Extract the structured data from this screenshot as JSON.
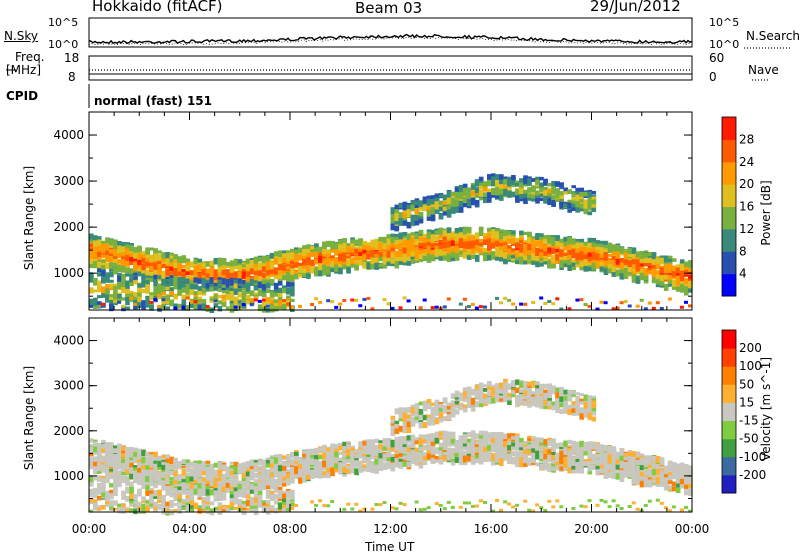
{
  "header": {
    "station": "Hokkaido (fitACF)",
    "beam": "Beam 03",
    "date": "29/Jun/2012"
  },
  "noise_panel": {
    "left_label": "N.Sky",
    "left_ticks": [
      "10^5",
      "10^0"
    ],
    "right_ticks": [
      "10^5",
      "10^0"
    ],
    "right_label": "N.Search"
  },
  "freq_panel": {
    "left_label_1": "Freq.",
    "left_label_2": "[MHz]",
    "left_ticks": [
      "18",
      "8"
    ],
    "right_ticks": [
      "60",
      "0"
    ],
    "right_label": "Nave"
  },
  "cpid": {
    "label": "CPID",
    "value": "normal (fast) 151"
  },
  "chart_data": [
    {
      "type": "heatmap",
      "name": "power",
      "ylabel": "Slant Range [km]",
      "yticks": [
        "4000",
        "3000",
        "2000",
        "1000"
      ],
      "ylim": [
        200,
        4500
      ],
      "colorbar_label": "Power [dB]",
      "colorbar_ticks": [
        "28",
        "24",
        "20",
        "16",
        "12",
        "8",
        "4"
      ],
      "colorbar_colors": [
        "#0000ff",
        "#2850b0",
        "#3a8a7a",
        "#7ab040",
        "#e0c020",
        "#ff9a00",
        "#ff5a00",
        "#ff1a00"
      ],
      "bands": [
        {
          "label": "main band",
          "x": [
            0,
            2,
            4,
            6,
            8,
            10,
            12,
            14,
            16,
            18,
            20,
            22,
            24
          ],
          "y": [
            1500,
            1250,
            1000,
            950,
            1200,
            1400,
            1500,
            1650,
            1650,
            1500,
            1400,
            1150,
            900
          ]
        },
        {
          "label": "lower band",
          "x": [
            0,
            2,
            4,
            6,
            8
          ],
          "y": [
            700,
            600,
            500,
            450,
            400
          ]
        },
        {
          "label": "upper band",
          "x": [
            12,
            14,
            16,
            18,
            20
          ],
          "y": [
            2200,
            2500,
            2900,
            2800,
            2500
          ]
        }
      ]
    },
    {
      "type": "heatmap",
      "name": "velocity",
      "ylabel": "Slant Range [km]",
      "yticks": [
        "4000",
        "3000",
        "2000",
        "1000"
      ],
      "ylim": [
        200,
        4500
      ],
      "colorbar_label": "Velocity [m s^-1]",
      "colorbar_ticks": [
        "200",
        "100",
        "50",
        "15",
        "-15",
        "-50",
        "-100",
        "-200"
      ],
      "colorbar_colors": [
        "#2020c0",
        "#3a6aa0",
        "#40a040",
        "#80cc40",
        "#c8c8c0",
        "#ffb030",
        "#ff8000",
        "#ff4000",
        "#ff0000"
      ],
      "xticks": [
        "00:00",
        "04:00",
        "08:00",
        "12:00",
        "16:00",
        "20:00",
        "00:00"
      ],
      "xlabel": "Time UT"
    }
  ]
}
